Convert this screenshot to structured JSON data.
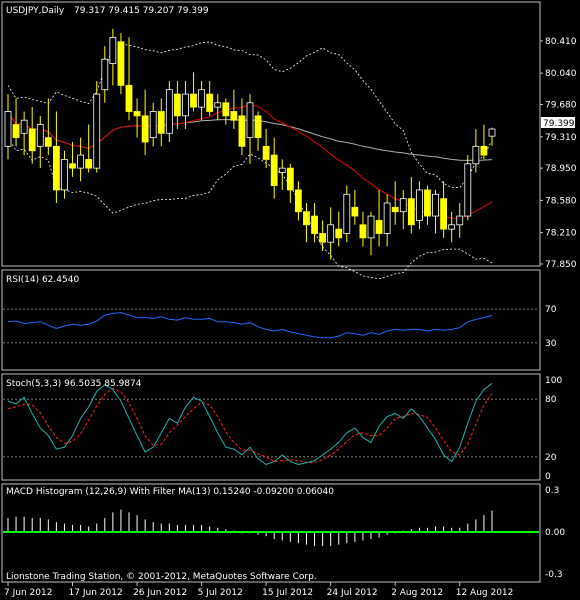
{
  "window": {
    "symbol_title": "USDJPY,Daily",
    "ohlc_readout": "79.317 79.415 79.207 79.399",
    "current_price_tag": "79.399",
    "copyright": "Lionstone Trading Station, © 2001-2012, MetaQuotes Software Corp."
  },
  "colors": {
    "background": "#000000",
    "frame": "#c0c0c0",
    "candle_up": "#ffff00",
    "candle_down": "#ffff00",
    "candle_up_hollow": "#ffffff",
    "ma_red": "#e00000",
    "ma_gray": "#b0b0b0",
    "bands": "#ffffff",
    "rsi_line": "#1e6aff",
    "stoch_main": "#20b2aa",
    "stoch_signal": "#ff2020",
    "macd_hist": "#ffffff",
    "macd_zero": "#00ff00",
    "level_lines": "#909090"
  },
  "chart_data": [
    {
      "type": "candlestick",
      "title": "USDJPY,Daily",
      "ylim": [
        77.85,
        80.65
      ],
      "y_ticks": [
        "80.410",
        "80.040",
        "79.680",
        "79.310",
        "78.950",
        "78.580",
        "78.210",
        "77.850"
      ],
      "x_labels": [
        "7 Jun 2012",
        "17 Jun 2012",
        "26 Jun 2012",
        "5 Jul 2012",
        "15 Jul 2012",
        "24 Jul 2012",
        "2 Aug 2012",
        "12 Aug 2012"
      ],
      "x_label_index": [
        0,
        8,
        16,
        24,
        32,
        40,
        48,
        56
      ],
      "candles": [
        {
          "o": 79.2,
          "h": 79.8,
          "l": 79.05,
          "c": 79.6
        },
        {
          "o": 79.45,
          "h": 79.75,
          "l": 79.2,
          "c": 79.3
        },
        {
          "o": 79.35,
          "h": 79.6,
          "l": 79.1,
          "c": 79.5
        },
        {
          "o": 79.4,
          "h": 79.65,
          "l": 79.0,
          "c": 79.15
        },
        {
          "o": 79.2,
          "h": 79.55,
          "l": 78.95,
          "c": 79.45
        },
        {
          "o": 79.3,
          "h": 79.75,
          "l": 79.1,
          "c": 79.2
        },
        {
          "o": 79.2,
          "h": 79.6,
          "l": 78.55,
          "c": 78.7
        },
        {
          "o": 78.7,
          "h": 79.15,
          "l": 78.6,
          "c": 79.05
        },
        {
          "o": 79.0,
          "h": 79.25,
          "l": 78.85,
          "c": 78.95
        },
        {
          "o": 78.95,
          "h": 79.3,
          "l": 78.8,
          "c": 79.1
        },
        {
          "o": 79.05,
          "h": 79.45,
          "l": 78.9,
          "c": 78.95
        },
        {
          "o": 78.95,
          "h": 79.95,
          "l": 78.9,
          "c": 79.8
        },
        {
          "o": 79.85,
          "h": 80.35,
          "l": 79.7,
          "c": 80.2
        },
        {
          "o": 80.15,
          "h": 80.55,
          "l": 79.9,
          "c": 80.45
        },
        {
          "o": 80.4,
          "h": 80.5,
          "l": 79.8,
          "c": 79.9
        },
        {
          "o": 79.9,
          "h": 80.45,
          "l": 79.5,
          "c": 79.6
        },
        {
          "o": 79.6,
          "h": 79.75,
          "l": 79.3,
          "c": 79.55
        },
        {
          "o": 79.55,
          "h": 79.85,
          "l": 79.1,
          "c": 79.25
        },
        {
          "o": 79.3,
          "h": 79.7,
          "l": 79.2,
          "c": 79.6
        },
        {
          "o": 79.6,
          "h": 79.75,
          "l": 79.2,
          "c": 79.35
        },
        {
          "o": 79.35,
          "h": 79.95,
          "l": 79.25,
          "c": 79.85
        },
        {
          "o": 79.8,
          "h": 79.95,
          "l": 79.4,
          "c": 79.55
        },
        {
          "o": 79.55,
          "h": 79.95,
          "l": 79.4,
          "c": 79.8
        },
        {
          "o": 79.8,
          "h": 80.05,
          "l": 79.6,
          "c": 79.65
        },
        {
          "o": 79.65,
          "h": 79.95,
          "l": 79.5,
          "c": 79.85
        },
        {
          "o": 79.8,
          "h": 79.95,
          "l": 79.55,
          "c": 79.6
        },
        {
          "o": 79.65,
          "h": 79.8,
          "l": 79.5,
          "c": 79.7
        },
        {
          "o": 79.7,
          "h": 79.75,
          "l": 79.45,
          "c": 79.55
        },
        {
          "o": 79.6,
          "h": 79.85,
          "l": 79.4,
          "c": 79.5
        },
        {
          "o": 79.55,
          "h": 79.75,
          "l": 79.1,
          "c": 79.2
        },
        {
          "o": 79.3,
          "h": 79.8,
          "l": 79.0,
          "c": 79.7
        },
        {
          "o": 79.55,
          "h": 79.6,
          "l": 79.15,
          "c": 79.3
        },
        {
          "o": 79.2,
          "h": 79.4,
          "l": 78.95,
          "c": 79.05
        },
        {
          "o": 79.1,
          "h": 79.3,
          "l": 78.6,
          "c": 78.75
        },
        {
          "o": 78.9,
          "h": 79.05,
          "l": 78.7,
          "c": 78.95
        },
        {
          "o": 78.95,
          "h": 79.0,
          "l": 78.55,
          "c": 78.7
        },
        {
          "o": 78.7,
          "h": 78.8,
          "l": 78.35,
          "c": 78.45
        },
        {
          "o": 78.45,
          "h": 78.55,
          "l": 78.1,
          "c": 78.3
        },
        {
          "o": 78.4,
          "h": 78.55,
          "l": 78.1,
          "c": 78.2
        },
        {
          "o": 78.2,
          "h": 78.35,
          "l": 78.0,
          "c": 78.1
        },
        {
          "o": 78.1,
          "h": 78.5,
          "l": 77.9,
          "c": 78.3
        },
        {
          "o": 78.25,
          "h": 78.45,
          "l": 78.05,
          "c": 78.15
        },
        {
          "o": 78.2,
          "h": 78.75,
          "l": 78.1,
          "c": 78.65
        },
        {
          "o": 78.5,
          "h": 78.7,
          "l": 78.3,
          "c": 78.4
        },
        {
          "o": 78.3,
          "h": 78.45,
          "l": 78.05,
          "c": 78.15
        },
        {
          "o": 78.15,
          "h": 78.45,
          "l": 77.95,
          "c": 78.4
        },
        {
          "o": 78.35,
          "h": 78.7,
          "l": 78.05,
          "c": 78.2
        },
        {
          "o": 78.2,
          "h": 78.65,
          "l": 78.05,
          "c": 78.55
        },
        {
          "o": 78.5,
          "h": 78.8,
          "l": 78.3,
          "c": 78.45
        },
        {
          "o": 78.45,
          "h": 78.7,
          "l": 78.25,
          "c": 78.6
        },
        {
          "o": 78.6,
          "h": 78.85,
          "l": 78.2,
          "c": 78.3
        },
        {
          "o": 78.35,
          "h": 78.8,
          "l": 78.25,
          "c": 78.7
        },
        {
          "o": 78.7,
          "h": 78.75,
          "l": 78.3,
          "c": 78.4
        },
        {
          "o": 78.4,
          "h": 78.7,
          "l": 78.2,
          "c": 78.65
        },
        {
          "o": 78.6,
          "h": 78.8,
          "l": 78.15,
          "c": 78.25
        },
        {
          "o": 78.25,
          "h": 78.45,
          "l": 78.1,
          "c": 78.3
        },
        {
          "o": 78.3,
          "h": 78.55,
          "l": 78.15,
          "c": 78.4
        },
        {
          "o": 78.4,
          "h": 79.1,
          "l": 78.35,
          "c": 79.0
        },
        {
          "o": 79.0,
          "h": 79.4,
          "l": 78.9,
          "c": 79.2
        },
        {
          "o": 79.2,
          "h": 79.45,
          "l": 79.05,
          "c": 79.1
        },
        {
          "o": 79.317,
          "h": 79.415,
          "l": 79.207,
          "c": 79.399
        }
      ]
    },
    {
      "type": "line",
      "title": "RSI(14) 62.4540",
      "ylim": [
        0,
        100
      ],
      "y_ticks": [
        "70",
        "30"
      ],
      "levels": [
        70,
        30
      ],
      "series": [
        {
          "name": "RSI(14)",
          "values": [
            55,
            56,
            53,
            54,
            55,
            51,
            47,
            50,
            52,
            51,
            52,
            56,
            63,
            65,
            66,
            63,
            60,
            60,
            59,
            61,
            58,
            57,
            60,
            58,
            58,
            59,
            55,
            55,
            54,
            52,
            54,
            49,
            46,
            44,
            46,
            43,
            41,
            39,
            37,
            36,
            36,
            38,
            42,
            41,
            39,
            42,
            40,
            44,
            46,
            45,
            46,
            46,
            44,
            46,
            45,
            46,
            48,
            55,
            58,
            60,
            62.454
          ]
        }
      ]
    },
    {
      "type": "line",
      "title": "Stoch(5,3,3) 96.5035 85.9874",
      "ylim": [
        0,
        100
      ],
      "y_ticks": [
        "100",
        "80",
        "20",
        "0"
      ],
      "levels": [
        80,
        20
      ],
      "series": [
        {
          "name": "Main",
          "values": [
            78,
            75,
            82,
            65,
            50,
            42,
            28,
            30,
            42,
            60,
            72,
            88,
            95,
            90,
            78,
            60,
            42,
            25,
            30,
            45,
            60,
            55,
            72,
            82,
            78,
            62,
            45,
            30,
            28,
            22,
            30,
            18,
            12,
            15,
            22,
            15,
            12,
            14,
            16,
            22,
            28,
            35,
            45,
            50,
            40,
            35,
            52,
            62,
            65,
            60,
            70,
            62,
            50,
            38,
            22,
            15,
            30,
            55,
            78,
            90,
            96.5035
          ]
        },
        {
          "name": "Signal",
          "values": [
            70,
            72,
            75,
            74,
            66,
            52,
            40,
            34,
            36,
            44,
            58,
            73,
            85,
            91,
            88,
            76,
            60,
            42,
            32,
            33,
            45,
            53,
            62,
            70,
            77,
            74,
            62,
            46,
            35,
            27,
            27,
            23,
            20,
            15,
            16,
            17,
            16,
            14,
            14,
            17,
            22,
            28,
            36,
            43,
            45,
            42,
            42,
            50,
            60,
            62,
            65,
            64,
            61,
            50,
            37,
            25,
            22,
            33,
            54,
            74,
            85.9874
          ]
        }
      ]
    },
    {
      "type": "bar",
      "title": "MACD Histogram (12,26,9) With Filter MA(13) 0.15240 -0.09200 0.06040",
      "ylim": [
        -0.3,
        0.3
      ],
      "y_ticks": [
        "0.3",
        "0.00",
        "-0.3"
      ],
      "values": [
        0.1,
        0.11,
        0.11,
        0.1,
        0.1,
        0.09,
        0.07,
        0.06,
        0.05,
        0.05,
        0.04,
        0.06,
        0.1,
        0.14,
        0.16,
        0.14,
        0.12,
        0.09,
        0.07,
        0.06,
        0.06,
        0.05,
        0.05,
        0.05,
        0.05,
        0.04,
        0.03,
        0.02,
        0.01,
        -0.01,
        -0.01,
        -0.02,
        -0.03,
        -0.05,
        -0.06,
        -0.07,
        -0.08,
        -0.09,
        -0.1,
        -0.1,
        -0.1,
        -0.09,
        -0.08,
        -0.07,
        -0.06,
        -0.05,
        -0.04,
        -0.02,
        -0.01,
        0.01,
        0.02,
        0.03,
        0.03,
        0.04,
        0.04,
        0.03,
        0.03,
        0.06,
        0.09,
        0.12,
        0.1524
      ]
    }
  ]
}
